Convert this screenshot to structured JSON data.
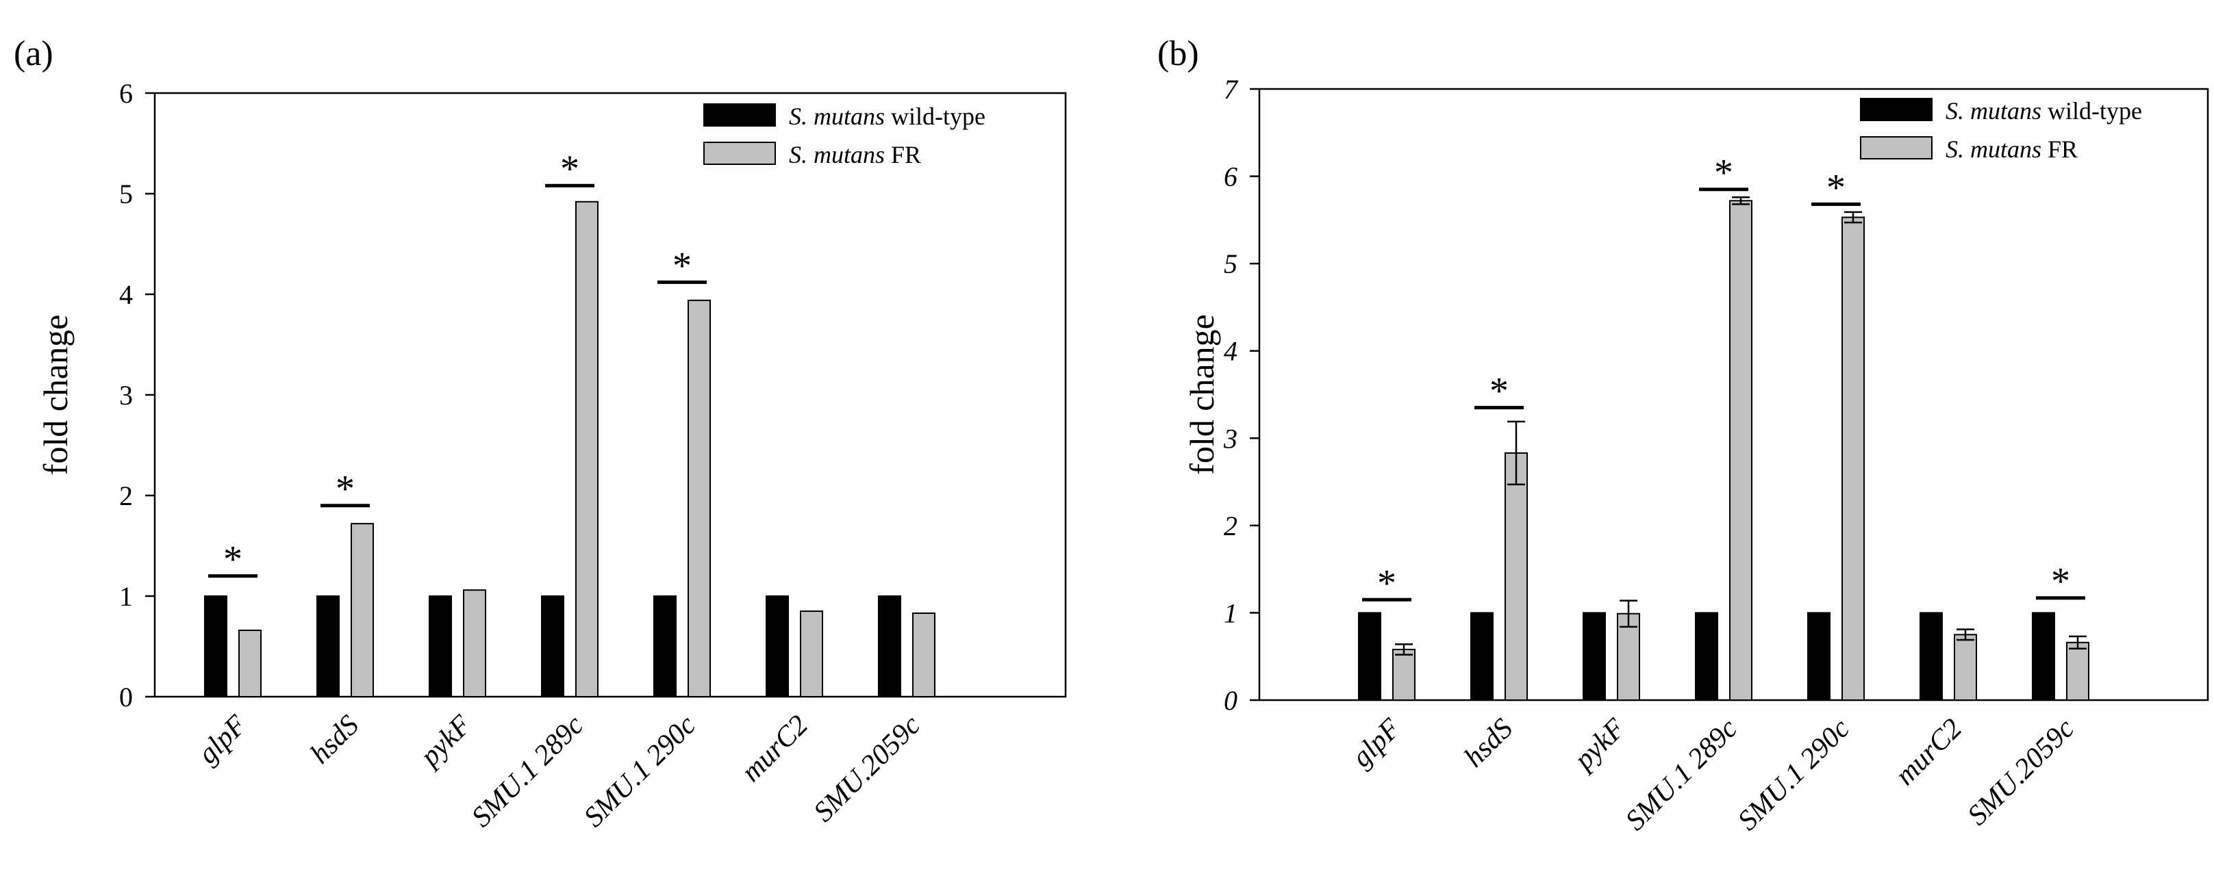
{
  "chart_data": [
    {
      "panel": "(a)",
      "type": "bar",
      "ylabel": "fold change",
      "xlabel": "",
      "ylim": [
        0,
        6
      ],
      "yticks": [
        0,
        1,
        2,
        3,
        4,
        5,
        6
      ],
      "error_bars": false,
      "categories": [
        "glpF",
        "hsdS",
        "pykF",
        "SMU.1289c",
        "SMU.1290c",
        "murC2",
        "SMU.2059c"
      ],
      "category_labels": [
        "glpF",
        "hsdS",
        "pykF",
        "SMU.1 289c",
        "SMU.1 290c",
        "murC2",
        "SMU.2059c"
      ],
      "series": [
        {
          "name": "S. mutans wild-type",
          "name_italic": "S. mutans",
          "name_rest": " wild-type",
          "color": "#000000",
          "values": [
            1,
            1,
            1,
            1,
            1,
            1,
            1
          ]
        },
        {
          "name": "S. mutans FR",
          "name_italic": "S. mutans",
          "name_rest": " FR",
          "color": "#c0c0c0",
          "values": [
            0.66,
            1.72,
            1.06,
            4.92,
            3.94,
            0.85,
            0.83
          ]
        }
      ],
      "significance": [
        {
          "category": "glpF",
          "marker": "*",
          "y": 1.2
        },
        {
          "category": "hsdS",
          "marker": "*",
          "y": 1.9
        },
        {
          "category": "SMU.1289c",
          "marker": "*",
          "y": 5.08
        },
        {
          "category": "SMU.1290c",
          "marker": "*",
          "y": 4.12
        }
      ],
      "legend_position": "top-right"
    },
    {
      "panel": "(b)",
      "type": "bar",
      "ylabel": "fold change",
      "xlabel": "",
      "ylim": [
        0,
        7
      ],
      "yticks": [
        0,
        1,
        2,
        3,
        4,
        5,
        6,
        7
      ],
      "error_bars": true,
      "categories": [
        "glpF",
        "hsdS",
        "pykF",
        "SMU.1289c",
        "SMU.1290c",
        "murC2",
        "SMU.2059c"
      ],
      "category_labels": [
        "glpF",
        "hsdS",
        "pykF",
        "SMU.1 289c",
        "SMU.1 290c",
        "murC2",
        "SMU.2059c"
      ],
      "series": [
        {
          "name": "S. mutans wild-type",
          "name_italic": "S. mutans",
          "name_rest": " wild-type",
          "color": "#000000",
          "values": [
            1,
            1,
            1,
            1,
            1,
            1,
            1
          ],
          "errors": [
            0,
            0,
            0,
            0,
            0,
            0,
            0
          ]
        },
        {
          "name": "S. mutans FR",
          "name_italic": "S. mutans",
          "name_rest": " FR",
          "color": "#c0c0c0",
          "values": [
            0.58,
            2.83,
            0.99,
            5.72,
            5.53,
            0.75,
            0.66
          ],
          "errors": [
            0.06,
            0.36,
            0.15,
            0.04,
            0.06,
            0.06,
            0.07
          ]
        }
      ],
      "significance": [
        {
          "category": "glpF",
          "marker": "*",
          "y": 1.15
        },
        {
          "category": "hsdS",
          "marker": "*",
          "y": 3.35
        },
        {
          "category": "SMU.1289c",
          "marker": "*",
          "y": 5.85
        },
        {
          "category": "SMU.1290c",
          "marker": "*",
          "y": 5.68
        },
        {
          "category": "SMU.2059c",
          "marker": "*",
          "y": 1.17
        }
      ],
      "legend_position": "top-right"
    }
  ]
}
